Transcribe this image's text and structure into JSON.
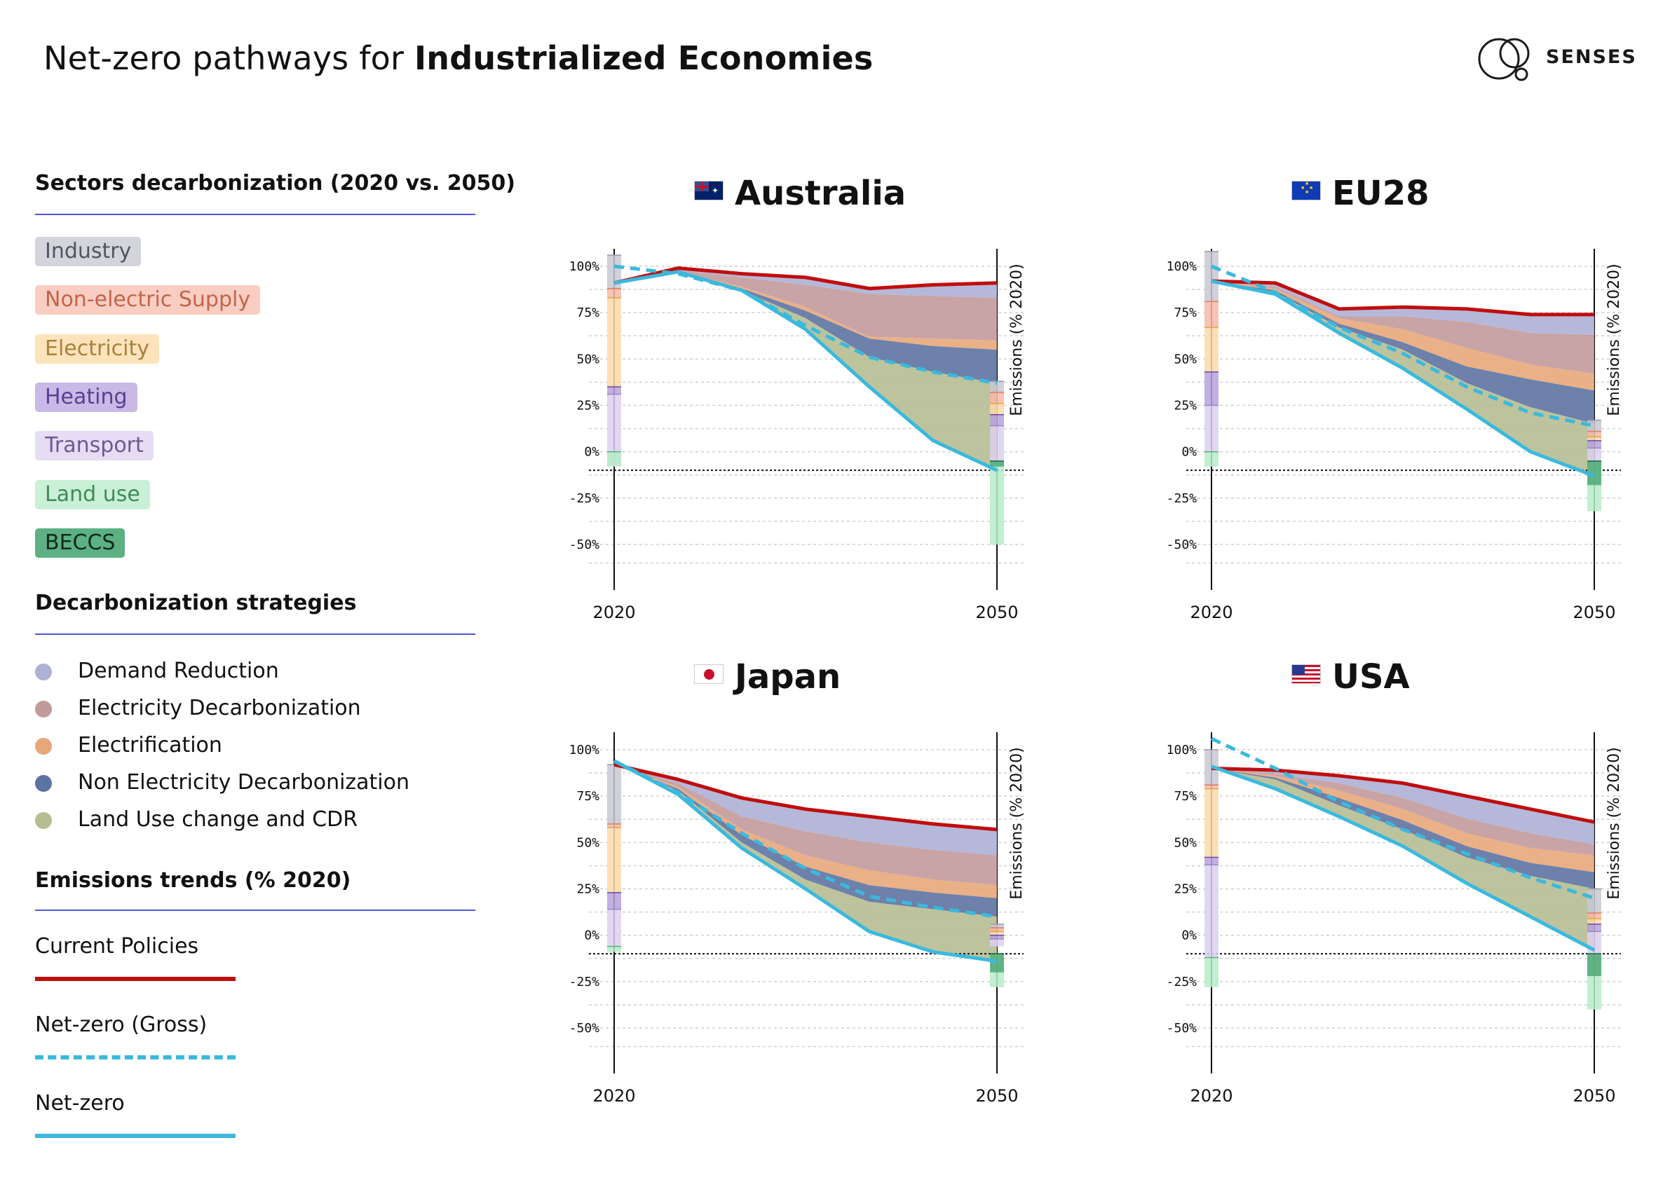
{
  "title": {
    "prefix": "Net-zero pathways for ",
    "bold": "Industrialized Economies"
  },
  "brand": {
    "name": "SENSES"
  },
  "legend": {
    "sectors_heading": "Sectors decarbonization (2020 vs. 2050)",
    "sectors": [
      {
        "label": "Industry",
        "bg": "#d4d4dc",
        "fg": "#555560"
      },
      {
        "label": "Non-electric Supply",
        "bg": "#f9cdc2",
        "fg": "#c0664a"
      },
      {
        "label": "Electricity",
        "bg": "#fde3bb",
        "fg": "#a8823b"
      },
      {
        "label": "Heating",
        "bg": "#c9b9e6",
        "fg": "#5a3f93"
      },
      {
        "label": "Transport",
        "bg": "#e6dcf4",
        "fg": "#6c5a92"
      },
      {
        "label": "Land use",
        "bg": "#c9efd6",
        "fg": "#3f8a58"
      },
      {
        "label": "BECCS",
        "bg": "#5db083",
        "fg": "#0e2b1b"
      }
    ],
    "strategies_heading": "Decarbonization strategies",
    "strategies": [
      {
        "label": "Demand Reduction",
        "color": "#aeb0d5"
      },
      {
        "label": "Electricity Decarbonization",
        "color": "#c29a9c"
      },
      {
        "label": "Electrification",
        "color": "#e8a77a"
      },
      {
        "label": "Non Electricity Decarbonization",
        "color": "#5d73a1"
      },
      {
        "label": "Land Use change and CDR",
        "color": "#b6bd92"
      }
    ],
    "trends_heading": "Emissions trends (% 2020)",
    "trends": [
      {
        "label": "Current Policies",
        "color": "#c00d0d",
        "style": "solid"
      },
      {
        "label": "Net-zero (Gross)",
        "color": "#3ab9dd",
        "style": "dashed"
      },
      {
        "label": "Net-zero",
        "color": "#3ab9dd",
        "style": "solid"
      }
    ]
  },
  "axis": {
    "y_ticks": [
      "100%",
      "75%",
      "50%",
      "25%",
      "0%",
      "-25%",
      "-50%"
    ],
    "y_values": [
      100,
      75,
      50,
      25,
      0,
      -25,
      -50
    ],
    "x_ticks": [
      "2020",
      "2050"
    ],
    "y_label": "Emissions (% 2020)"
  },
  "colors": {
    "demand_reduction": "#aeb0d5",
    "electricity_decarbonization": "#c29a9c",
    "electrification": "#e8a77a",
    "non_electricity_decarbonization": "#5d73a1",
    "land_use_cdr": "#b6bd92",
    "current_policies": "#c00d0d",
    "net_zero": "#3ab9dd"
  },
  "chart_data": [
    {
      "type": "area",
      "title": "Australia",
      "flag": "au",
      "x": [
        2020,
        2025,
        2030,
        2035,
        2040,
        2045,
        2050
      ],
      "ylim": [
        -60,
        110
      ],
      "current_policies": [
        91,
        99,
        96,
        94,
        88,
        90,
        91
      ],
      "layers": {
        "demand_reduction": [
          91,
          98,
          94,
          90,
          85,
          84,
          83
        ],
        "electricity_decarbonization": [
          91,
          97,
          89,
          78,
          62,
          61,
          60
        ],
        "electrification": [
          91,
          97,
          88,
          76,
          61,
          57,
          55
        ],
        "non_electricity_decarbonization": [
          91,
          97,
          87,
          72,
          51,
          43,
          37
        ]
      },
      "net_zero_gross": [
        100,
        96,
        87,
        68,
        51,
        43,
        37
      ],
      "net_zero": [
        91,
        97,
        87,
        66,
        35,
        6,
        -10
      ],
      "bars_2020": {
        "industry": [
          88,
          106
        ],
        "non_electric_supply": [
          83,
          88
        ],
        "electricity": [
          35,
          83
        ],
        "heating": [
          31,
          35
        ],
        "transport": [
          -8,
          31
        ],
        "land_use": [
          -8,
          0
        ],
        "beccs": [
          -8,
          -8
        ]
      },
      "bars_2050": {
        "industry": [
          32,
          38
        ],
        "non_electric_supply": [
          26,
          32
        ],
        "electricity": [
          20,
          26
        ],
        "heating": [
          14,
          20
        ],
        "transport": [
          -5,
          14
        ],
        "land_use": [
          -50,
          -5
        ],
        "beccs": [
          -8,
          -5
        ]
      }
    },
    {
      "type": "area",
      "title": "EU28",
      "flag": "eu",
      "x": [
        2020,
        2025,
        2030,
        2035,
        2040,
        2045,
        2050
      ],
      "ylim": [
        -60,
        110
      ],
      "current_policies": [
        92,
        91,
        77,
        78,
        77,
        74,
        74
      ],
      "layers": {
        "demand_reduction": [
          92,
          89,
          73,
          73,
          70,
          64,
          63
        ],
        "electricity_decarbonization": [
          92,
          88,
          72,
          66,
          56,
          47,
          42
        ],
        "electrification": [
          92,
          87,
          69,
          59,
          46,
          39,
          33
        ],
        "non_electricity_decarbonization": [
          92,
          86,
          67,
          55,
          37,
          24,
          15
        ]
      },
      "net_zero_gross": [
        100,
        86,
        67,
        53,
        35,
        21,
        14
      ],
      "net_zero": [
        92,
        85,
        64,
        45,
        23,
        0,
        -13
      ],
      "bars_2020": {
        "industry": [
          81,
          108
        ],
        "non_electric_supply": [
          67,
          81
        ],
        "electricity": [
          43,
          67
        ],
        "heating": [
          25,
          43
        ],
        "transport": [
          0,
          25
        ],
        "land_use": [
          -8,
          0
        ],
        "beccs": [
          -8,
          -8
        ]
      },
      "bars_2050": {
        "industry": [
          11,
          17
        ],
        "non_electric_supply": [
          8,
          11
        ],
        "electricity": [
          6,
          8
        ],
        "heating": [
          2,
          6
        ],
        "transport": [
          -5,
          2
        ],
        "land_use": [
          -32,
          -5
        ],
        "beccs": [
          -18,
          -5
        ]
      }
    },
    {
      "type": "area",
      "title": "Japan",
      "flag": "jp",
      "x": [
        2020,
        2025,
        2030,
        2035,
        2040,
        2045,
        2050
      ],
      "ylim": [
        -60,
        110
      ],
      "current_policies": [
        92,
        84,
        74,
        68,
        64,
        60,
        57
      ],
      "layers": {
        "demand_reduction": [
          92,
          82,
          64,
          56,
          50,
          46,
          43
        ],
        "electricity_decarbonization": [
          92,
          80,
          57,
          43,
          35,
          30,
          27
        ],
        "electrification": [
          92,
          79,
          54,
          37,
          27,
          23,
          20
        ],
        "non_electricity_decarbonization": [
          92,
          78,
          50,
          30,
          18,
          14,
          10
        ]
      },
      "net_zero_gross": [
        94,
        77,
        55,
        36,
        21,
        15,
        10
      ],
      "net_zero": [
        94,
        76,
        47,
        25,
        2,
        -9,
        -14
      ],
      "bars_2020": {
        "industry": [
          60,
          92
        ],
        "non_electric_supply": [
          58,
          60
        ],
        "electricity": [
          23,
          58
        ],
        "heating": [
          14,
          23
        ],
        "transport": [
          -6,
          14
        ],
        "land_use": [
          -9,
          -6
        ],
        "beccs": [
          -9,
          -9
        ]
      },
      "bars_2050": {
        "industry": [
          4,
          6
        ],
        "non_electric_supply": [
          2,
          4
        ],
        "electricity": [
          0,
          2
        ],
        "heating": [
          -2,
          0
        ],
        "transport": [
          -6,
          -2
        ],
        "land_use": [
          -28,
          -10
        ],
        "beccs": [
          -20,
          -10
        ]
      }
    },
    {
      "type": "area",
      "title": "USA",
      "flag": "us",
      "x": [
        2020,
        2025,
        2030,
        2035,
        2040,
        2045,
        2050
      ],
      "ylim": [
        -60,
        110
      ],
      "current_policies": [
        90,
        89,
        86,
        82,
        75,
        68,
        61
      ],
      "layers": {
        "demand_reduction": [
          90,
          87,
          82,
          74,
          63,
          55,
          49
        ],
        "electricity_decarbonization": [
          90,
          86,
          78,
          68,
          55,
          47,
          43
        ],
        "electrification": [
          90,
          85,
          74,
          62,
          48,
          39,
          34
        ],
        "non_electricity_decarbonization": [
          90,
          84,
          70,
          57,
          42,
          32,
          25
        ]
      },
      "net_zero_gross": [
        106,
        90,
        72,
        57,
        44,
        31,
        20
      ],
      "net_zero": [
        91,
        79,
        64,
        48,
        28,
        10,
        -8
      ],
      "bars_2020": {
        "industry": [
          81,
          100
        ],
        "non_electric_supply": [
          79,
          81
        ],
        "electricity": [
          42,
          79
        ],
        "heating": [
          38,
          42
        ],
        "transport": [
          -12,
          38
        ],
        "land_use": [
          -28,
          -12
        ],
        "beccs": [
          -12,
          -12
        ]
      },
      "bars_2050": {
        "industry": [
          12,
          25
        ],
        "non_electric_supply": [
          9,
          12
        ],
        "electricity": [
          6,
          9
        ],
        "heating": [
          2,
          6
        ],
        "transport": [
          -10,
          2
        ],
        "land_use": [
          -40,
          -10
        ],
        "beccs": [
          -22,
          -10
        ]
      }
    }
  ]
}
